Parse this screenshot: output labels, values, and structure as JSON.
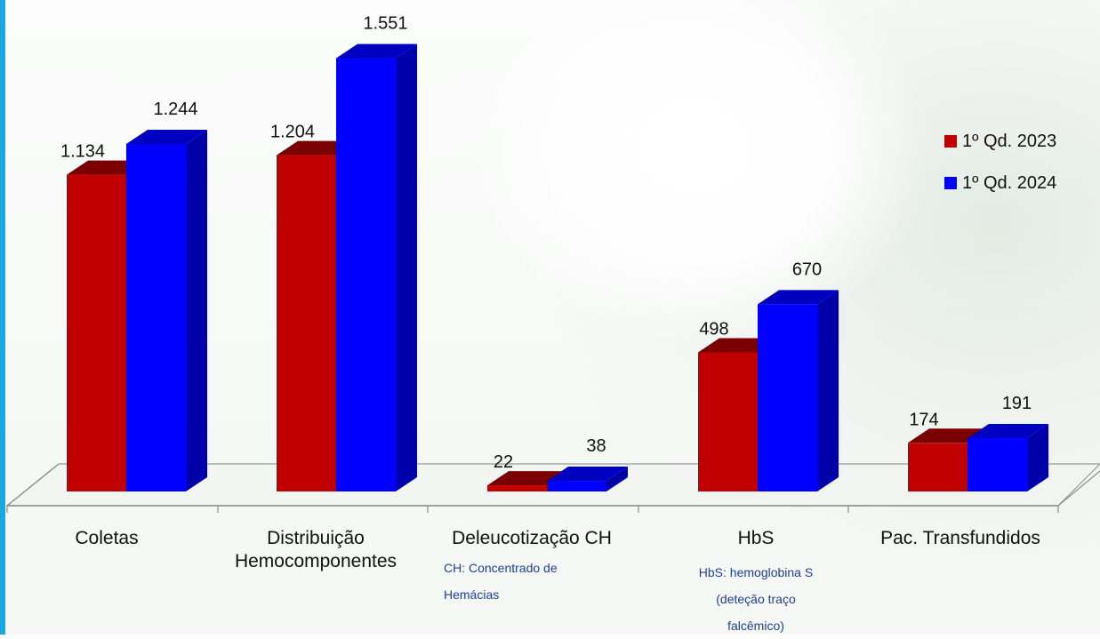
{
  "chart_data": {
    "type": "bar",
    "categories": [
      "Coletas",
      "Distribuição\nHemocomponentes",
      "Deleucotização CH",
      "HbS",
      "Pac. Transfundidos"
    ],
    "notes": [
      "",
      "",
      "CH: Concentrado de\nHemácias",
      "HbS: hemoglobina S\n(deteção traço\nfalcêmico)",
      ""
    ],
    "series": [
      {
        "name": "1º Qd. 2023",
        "values": [
          1134,
          1204,
          22,
          498,
          174
        ],
        "labels": [
          "1.134",
          "1.204",
          "22",
          "498",
          "174"
        ]
      },
      {
        "name": "1º Qd. 2024",
        "values": [
          1244,
          1551,
          38,
          670,
          191
        ],
        "labels": [
          "1.244",
          "1.551",
          "38",
          "670",
          "191"
        ]
      }
    ],
    "legend_position": "right",
    "grid": false,
    "three_d": true
  },
  "colors": {
    "series_2023": "#c00000",
    "series_2023_side": "#8a0000",
    "series_2023_top": "#7a0000",
    "series_2024": "#0000ff",
    "series_2024_side": "#0000a8",
    "series_2024_top": "#0000c0",
    "accent": "#1aa8e0"
  }
}
